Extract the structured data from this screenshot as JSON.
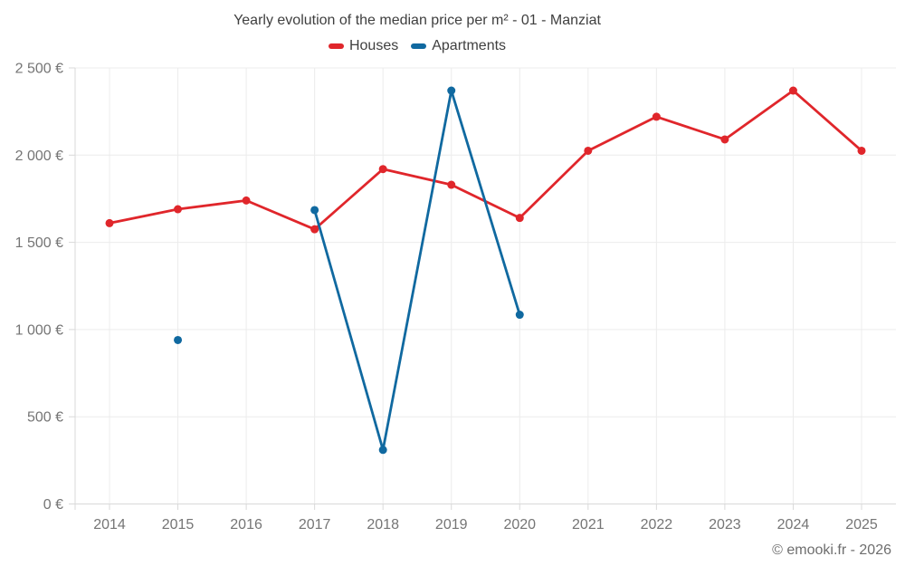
{
  "title": "Yearly evolution of the median price per m² - 01 - Manziat",
  "footer": "© emooki.fr - 2026",
  "chart_data": {
    "type": "line",
    "categories": [
      "2014",
      "2015",
      "2016",
      "2017",
      "2018",
      "2019",
      "2020",
      "2021",
      "2022",
      "2023",
      "2024",
      "2025"
    ],
    "series": [
      {
        "name": "Houses",
        "color": "#e0262b",
        "values": [
          1610,
          1690,
          1740,
          1575,
          1920,
          1830,
          1640,
          2025,
          2220,
          2090,
          2370,
          2025
        ]
      },
      {
        "name": "Apartments",
        "color": "#1069a0",
        "values": [
          null,
          940,
          null,
          1685,
          310,
          2370,
          1085,
          null,
          null,
          null,
          null,
          null
        ]
      }
    ],
    "xlabel": "",
    "ylabel": "",
    "ylim": [
      0,
      2500
    ],
    "ytick_step": 500,
    "ytick_labels": [
      "0 €",
      "500 €",
      "1 000 €",
      "1 500 €",
      "2 000 €",
      "2 500 €"
    ],
    "grid": true,
    "legend_position": "top",
    "marker_radius": 4.5,
    "line_width": 2.8
  },
  "colors": {
    "houses": "#e0262b",
    "apartments": "#1069a0",
    "grid_line": "#ececec",
    "axis_line": "#d9d9d9",
    "tick_label": "#757575",
    "title_text": "#3f3f3f",
    "footer_text": "#6e6e6e",
    "background": "#ffffff"
  }
}
